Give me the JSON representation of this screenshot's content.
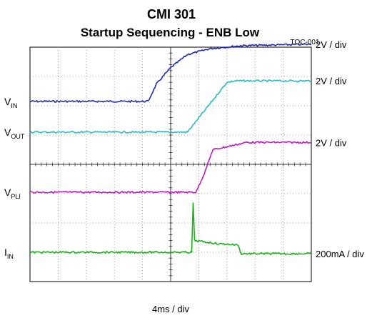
{
  "chart_data": {
    "type": "line",
    "title": "CMI 301",
    "subtitle": "Startup Sequencing - ENB Low",
    "figure_id": "TOC-001",
    "xlabel": "4ms / div",
    "x_divisions": 10,
    "y_divisions": 8,
    "grid": true,
    "series": [
      {
        "name": "V",
        "name_sub": "IN",
        "color": "#1f2ab8",
        "scale_label": "2V / div",
        "points": [
          [
            0.0,
            2.15
          ],
          [
            4.2,
            2.15
          ],
          [
            4.5,
            2.75
          ],
          [
            5.0,
            3.3
          ],
          [
            5.6,
            3.75
          ],
          [
            6.4,
            3.95
          ],
          [
            7.5,
            4.05
          ],
          [
            10.0,
            4.1
          ]
        ]
      },
      {
        "name": "V",
        "name_sub": "OUT",
        "color": "#2bbcc6",
        "scale_label": "2V / div",
        "points": [
          [
            0.0,
            1.1
          ],
          [
            5.6,
            1.1
          ],
          [
            7.0,
            2.8
          ],
          [
            7.3,
            2.85
          ],
          [
            10.0,
            2.85
          ]
        ]
      },
      {
        "name": "V",
        "name_sub": "PLI",
        "color": "#c21bc2",
        "scale_label": "2V / div",
        "points": [
          [
            0.0,
            -0.95
          ],
          [
            5.9,
            -0.95
          ],
          [
            6.2,
            -0.3
          ],
          [
            6.5,
            0.5
          ],
          [
            7.7,
            0.75
          ],
          [
            10.0,
            0.75
          ]
        ]
      },
      {
        "name": "I",
        "name_sub": "IN",
        "color": "#18b418",
        "scale_label": "200mA / div",
        "points": [
          [
            0.0,
            -3.0
          ],
          [
            5.75,
            -3.0
          ],
          [
            5.8,
            -1.3
          ],
          [
            5.85,
            -2.6
          ],
          [
            6.6,
            -2.7
          ],
          [
            7.4,
            -2.75
          ],
          [
            7.5,
            -3.05
          ],
          [
            10.0,
            -3.05
          ]
        ]
      }
    ]
  }
}
